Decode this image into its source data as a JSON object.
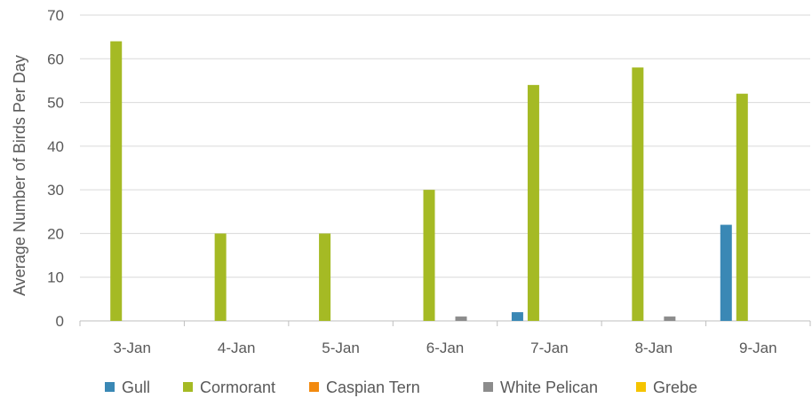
{
  "chart_data": {
    "type": "bar",
    "title": "",
    "xlabel": "",
    "ylabel": "Average Number of Birds Per Day",
    "ylim": [
      0,
      70
    ],
    "yticks": [
      0,
      10,
      20,
      30,
      40,
      50,
      60,
      70
    ],
    "grid": true,
    "legend_position": "bottom",
    "categories": [
      "3-Jan",
      "4-Jan",
      "5-Jan",
      "6-Jan",
      "7-Jan",
      "8-Jan",
      "9-Jan"
    ],
    "series": [
      {
        "name": "Gull",
        "color": "#3A88B5",
        "values": [
          0,
          0,
          0,
          0,
          2,
          0,
          22
        ]
      },
      {
        "name": "Cormorant",
        "color": "#A5BA24",
        "values": [
          64,
          20,
          20,
          30,
          54,
          58,
          52
        ]
      },
      {
        "name": "Caspian Tern",
        "color": "#F28A0F",
        "values": [
          0,
          0,
          0,
          0,
          0,
          0,
          0
        ]
      },
      {
        "name": "White Pelican",
        "color": "#8C8C8C",
        "values": [
          0,
          0,
          0,
          1,
          0,
          1,
          0
        ]
      },
      {
        "name": "Grebe",
        "color": "#F5C400",
        "values": [
          0,
          0,
          0,
          0,
          0,
          0,
          0
        ]
      }
    ]
  }
}
